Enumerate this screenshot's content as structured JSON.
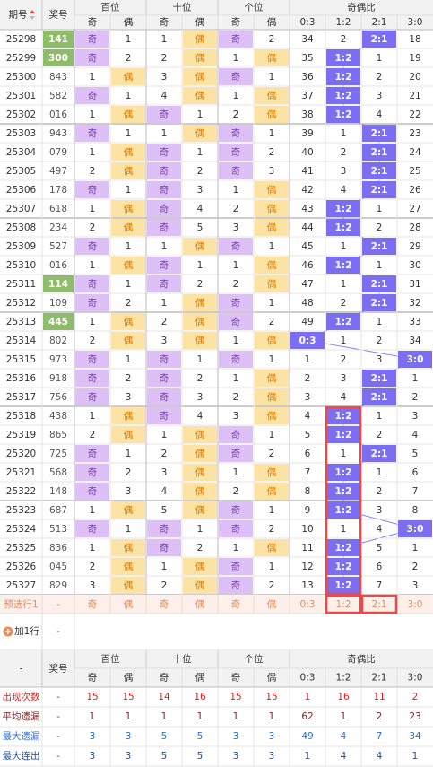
{
  "header": {
    "issue": "期号",
    "number": "奖号",
    "groups": [
      "百位",
      "十位",
      "个位",
      "奇偶比"
    ],
    "subcols": [
      "奇",
      "偶",
      "奇",
      "偶",
      "奇",
      "偶",
      "0:3",
      "1:2",
      "2:1",
      "3:0"
    ]
  },
  "rows": [
    [
      "25298",
      "141",
      "奇",
      "1",
      "1",
      "偶",
      "奇",
      "2",
      "34",
      "2",
      "2:1",
      "18"
    ],
    [
      "25299",
      "300",
      "奇",
      "2",
      "2",
      "偶",
      "1",
      "偶",
      "35",
      "1:2",
      "1",
      "19"
    ],
    [
      "25300",
      "843",
      "1",
      "偶",
      "3",
      "偶",
      "奇",
      "1",
      "36",
      "1:2",
      "2",
      "20"
    ],
    [
      "25301",
      "582",
      "奇",
      "1",
      "4",
      "偶",
      "1",
      "偶",
      "37",
      "1:2",
      "3",
      "21"
    ],
    [
      "25302",
      "016",
      "1",
      "偶",
      "奇",
      "1",
      "2",
      "偶",
      "38",
      "1:2",
      "4",
      "22"
    ],
    [
      "25303",
      "943",
      "奇",
      "1",
      "1",
      "偶",
      "奇",
      "1",
      "39",
      "1",
      "2:1",
      "23"
    ],
    [
      "25304",
      "079",
      "1",
      "偶",
      "奇",
      "1",
      "奇",
      "2",
      "40",
      "2",
      "2:1",
      "24"
    ],
    [
      "25305",
      "497",
      "2",
      "偶",
      "奇",
      "2",
      "奇",
      "3",
      "41",
      "3",
      "2:1",
      "25"
    ],
    [
      "25306",
      "178",
      "奇",
      "1",
      "奇",
      "3",
      "1",
      "偶",
      "42",
      "4",
      "2:1",
      "26"
    ],
    [
      "25307",
      "618",
      "1",
      "偶",
      "奇",
      "4",
      "2",
      "偶",
      "43",
      "1:2",
      "1",
      "27"
    ],
    [
      "25308",
      "234",
      "2",
      "偶",
      "奇",
      "5",
      "3",
      "偶",
      "44",
      "1:2",
      "2",
      "28"
    ],
    [
      "25309",
      "527",
      "奇",
      "1",
      "1",
      "偶",
      "奇",
      "1",
      "45",
      "1",
      "2:1",
      "29"
    ],
    [
      "25310",
      "016",
      "1",
      "偶",
      "奇",
      "1",
      "1",
      "偶",
      "46",
      "1:2",
      "1",
      "30"
    ],
    [
      "25311",
      "114",
      "奇",
      "1",
      "奇",
      "2",
      "2",
      "偶",
      "47",
      "1",
      "2:1",
      "31"
    ],
    [
      "25312",
      "109",
      "奇",
      "2",
      "1",
      "偶",
      "奇",
      "1",
      "48",
      "2",
      "2:1",
      "32"
    ],
    [
      "25313",
      "445",
      "1",
      "偶",
      "2",
      "偶",
      "奇",
      "2",
      "49",
      "1:2",
      "1",
      "33"
    ],
    [
      "25314",
      "802",
      "2",
      "偶",
      "3",
      "偶",
      "1",
      "偶",
      "0:3",
      "1",
      "2",
      "34"
    ],
    [
      "25315",
      "973",
      "奇",
      "1",
      "奇",
      "1",
      "奇",
      "1",
      "1",
      "2",
      "3",
      "3:0"
    ],
    [
      "25316",
      "918",
      "奇",
      "2",
      "奇",
      "2",
      "1",
      "偶",
      "2",
      "3",
      "2:1",
      "1"
    ],
    [
      "25317",
      "756",
      "奇",
      "3",
      "奇",
      "3",
      "2",
      "偶",
      "3",
      "4",
      "2:1",
      "2"
    ],
    [
      "25318",
      "438",
      "1",
      "偶",
      "奇",
      "4",
      "3",
      "偶",
      "4",
      "1:2",
      "1",
      "3"
    ],
    [
      "25319",
      "865",
      "2",
      "偶",
      "1",
      "偶",
      "奇",
      "1",
      "5",
      "1:2",
      "2",
      "4"
    ],
    [
      "25320",
      "725",
      "奇",
      "1",
      "2",
      "偶",
      "奇",
      "2",
      "6",
      "1",
      "2:1",
      "5"
    ],
    [
      "25321",
      "568",
      "奇",
      "2",
      "3",
      "偶",
      "1",
      "偶",
      "7",
      "1:2",
      "1",
      "6"
    ],
    [
      "25322",
      "148",
      "奇",
      "3",
      "4",
      "偶",
      "2",
      "偶",
      "8",
      "1:2",
      "2",
      "7"
    ],
    [
      "25323",
      "687",
      "1",
      "偶",
      "5",
      "偶",
      "奇",
      "1",
      "9",
      "1:2",
      "3",
      "8"
    ],
    [
      "25324",
      "513",
      "奇",
      "1",
      "奇",
      "1",
      "奇",
      "2",
      "10",
      "1",
      "4",
      "3:0"
    ],
    [
      "25325",
      "836",
      "1",
      "偶",
      "奇",
      "2",
      "1",
      "偶",
      "11",
      "1:2",
      "5",
      "1"
    ],
    [
      "25326",
      "045",
      "2",
      "偶",
      "1",
      "偶",
      "奇",
      "1",
      "12",
      "1:2",
      "6",
      "2"
    ],
    [
      "25327",
      "829",
      "3",
      "偶",
      "2",
      "偶",
      "奇",
      "2",
      "13",
      "1:2",
      "7",
      "3"
    ]
  ],
  "highlighted_number_rows": [
    0,
    1,
    13,
    15
  ],
  "preview_row": [
    "预选行1",
    "-",
    "奇",
    "偶",
    "奇",
    "偶",
    "奇",
    "偶",
    "0:3",
    "1:2",
    "2:1",
    "3:0"
  ],
  "add_row": {
    "label": "加1行",
    "value": "-"
  },
  "footer_header": {
    "first": "-",
    "number": "奖号",
    "groups": [
      "百位",
      "十位",
      "个位",
      "奇偶比"
    ],
    "subcols": [
      "奇",
      "偶",
      "奇",
      "偶",
      "奇",
      "偶",
      "0:3",
      "1:2",
      "2:1",
      "3:0"
    ]
  },
  "stats": [
    [
      "出现次数",
      "-",
      "15",
      "15",
      "14",
      "16",
      "15",
      "15",
      "1",
      "16",
      "11",
      "2"
    ],
    [
      "平均遗漏",
      "-",
      "1",
      "1",
      "1",
      "1",
      "1",
      "1",
      "62",
      "1",
      "2",
      "23"
    ],
    [
      "最大遗漏",
      "-",
      "3",
      "3",
      "5",
      "5",
      "3",
      "3",
      "49",
      "4",
      "7",
      "34"
    ],
    [
      "最大连出",
      "-",
      "3",
      "3",
      "5",
      "5",
      "3",
      "3",
      "1",
      "4",
      "4",
      "1"
    ]
  ]
}
